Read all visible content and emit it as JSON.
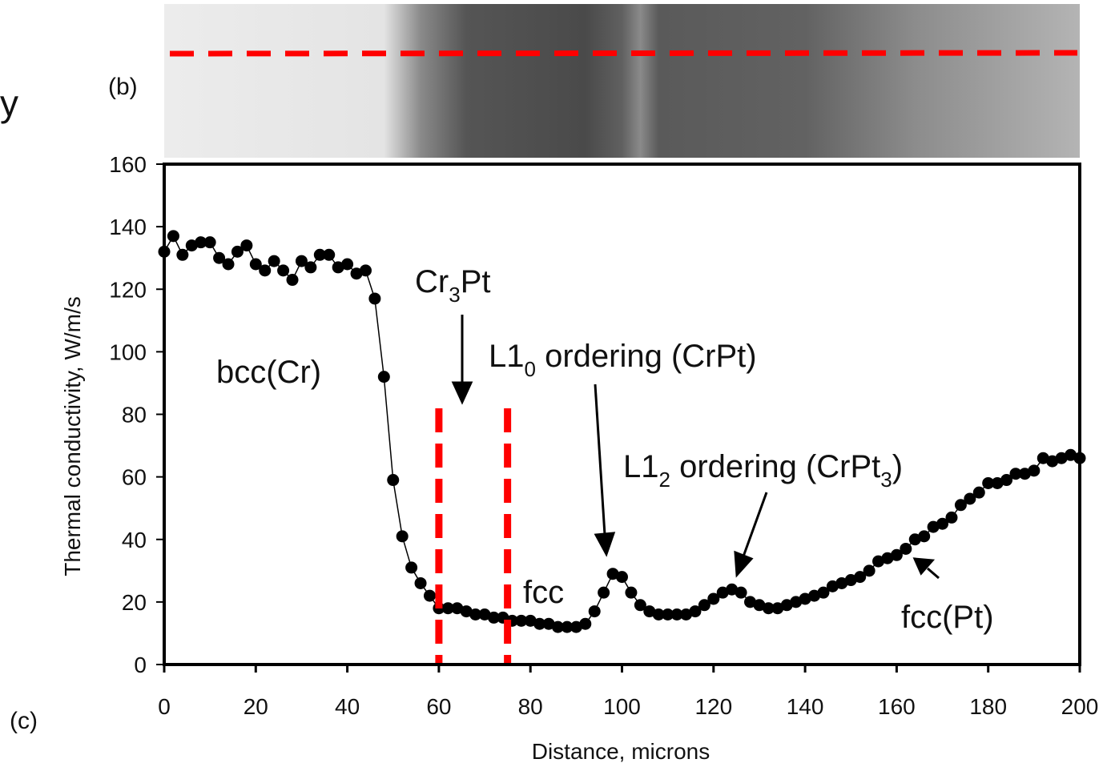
{
  "chart_data": {
    "type": "line",
    "panel_labels": [
      "(b)",
      "(c)"
    ],
    "slide_fragment": "y",
    "x_label": "Distance, microns",
    "y_label": "Thermal conductivity, W/m/s",
    "xlim": [
      0,
      200
    ],
    "ylim": [
      0,
      160
    ],
    "xticks": [
      0,
      20,
      40,
      60,
      80,
      100,
      120,
      140,
      160,
      180,
      200
    ],
    "yticks": [
      0,
      20,
      40,
      60,
      80,
      100,
      120,
      140,
      160
    ],
    "series": [
      {
        "color": "#000000",
        "x": [
          0,
          2,
          4,
          6,
          8,
          10,
          12,
          14,
          16,
          18,
          20,
          22,
          24,
          26,
          28,
          30,
          32,
          34,
          36,
          38,
          40,
          42,
          44,
          46,
          48,
          50,
          52,
          54,
          56,
          58,
          60,
          62,
          64,
          66,
          68,
          70,
          72,
          74,
          76,
          78,
          80,
          82,
          84,
          86,
          88,
          90,
          92,
          94,
          96,
          98,
          100,
          102,
          104,
          106,
          108,
          110,
          112,
          114,
          116,
          118,
          120,
          122,
          124,
          126,
          128,
          130,
          132,
          134,
          136,
          138,
          140,
          142,
          144,
          146,
          148,
          150,
          152,
          154,
          156,
          158,
          160,
          162,
          164,
          166,
          168,
          170,
          172,
          174,
          176,
          178,
          180,
          182,
          184,
          186,
          188,
          190,
          192,
          194,
          196,
          198,
          200
        ],
        "values": [
          132,
          137,
          131,
          134,
          135,
          135,
          130,
          128,
          132,
          134,
          128,
          126,
          129,
          126,
          123,
          129,
          127,
          131,
          131,
          127,
          128,
          125,
          126,
          117,
          92,
          59,
          41,
          31,
          26,
          22,
          18,
          18,
          18,
          17,
          16,
          16,
          15,
          15,
          14,
          14,
          14,
          13,
          13,
          12,
          12,
          12,
          13,
          17,
          23,
          29,
          28,
          23,
          19,
          17,
          16,
          16,
          16,
          16,
          17,
          19,
          21,
          23,
          24,
          23,
          20,
          19,
          18,
          18,
          19,
          20,
          21,
          22,
          23,
          25,
          26,
          27,
          28,
          30,
          33,
          34,
          35,
          37,
          40,
          41,
          44,
          45,
          47,
          51,
          53,
          55,
          58,
          58,
          59,
          61,
          61,
          62,
          66,
          65,
          66,
          67,
          66
        ]
      }
    ],
    "vlines": {
      "color": "#ff0000",
      "x": [
        60,
        75
      ]
    },
    "annotations": [
      {
        "parts": [
          {
            "text": "bcc(Cr)"
          }
        ]
      },
      {
        "parts": [
          {
            "text": "Cr"
          },
          {
            "text": "3",
            "sub": true
          },
          {
            "text": "Pt"
          }
        ]
      },
      {
        "parts": [
          {
            "text": "L1"
          },
          {
            "text": "0",
            "sub": true
          },
          {
            "text": " ordering (CrPt)"
          }
        ]
      },
      {
        "parts": [
          {
            "text": "L1"
          },
          {
            "text": "2",
            "sub": true
          },
          {
            "text": " ordering (CrPt"
          },
          {
            "text": "3",
            "sub": true
          },
          {
            "text": ")"
          }
        ]
      },
      {
        "parts": [
          {
            "text": "fcc"
          }
        ]
      },
      {
        "parts": [
          {
            "text": "fcc(Pt)"
          }
        ]
      }
    ]
  }
}
